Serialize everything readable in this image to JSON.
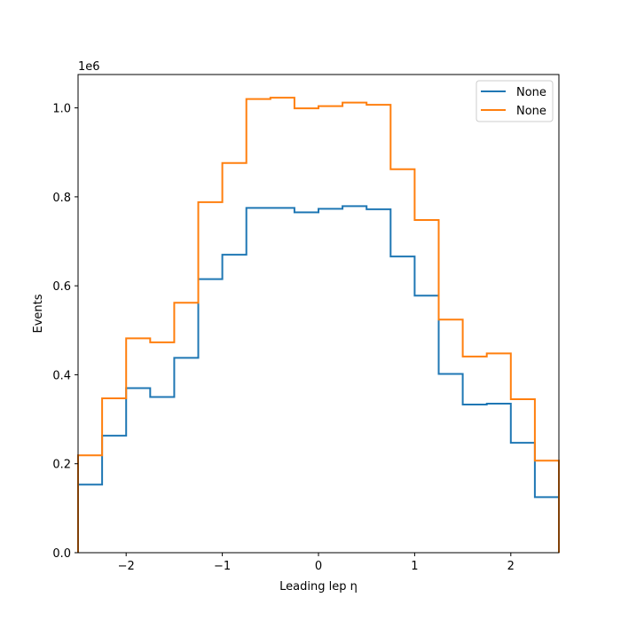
{
  "chart_data": {
    "type": "line",
    "subtype": "step-histogram",
    "title": "",
    "xlabel": "Leading lep η",
    "ylabel": "Events",
    "y_offset_text": "1e6",
    "xlim": [
      -2.5,
      2.5
    ],
    "ylim": [
      0,
      1075000
    ],
    "xticks": [
      -2,
      -1,
      0,
      1,
      2
    ],
    "xtick_labels": [
      "−2",
      "−1",
      "0",
      "1",
      "2"
    ],
    "yticks": [
      0,
      200000,
      400000,
      600000,
      800000,
      1000000
    ],
    "ytick_labels": [
      "0.0",
      "0.2",
      "0.4",
      "0.6",
      "0.8",
      "1.0"
    ],
    "bin_edges": [
      -2.5,
      -2.25,
      -2.0,
      -1.75,
      -1.5,
      -1.25,
      -1.0,
      -0.75,
      -0.5,
      -0.25,
      0.0,
      0.25,
      0.5,
      0.75,
      1.0,
      1.25,
      1.5,
      1.75,
      2.0,
      2.25,
      2.5
    ],
    "grid": false,
    "legend_position": "top-right",
    "series": [
      {
        "name": "None",
        "color": "#1f77b4",
        "values": [
          153000,
          263000,
          370000,
          350000,
          438000,
          615000,
          670000,
          775000,
          775000,
          765000,
          773000,
          779000,
          772000,
          666000,
          578000,
          402000,
          333000,
          335000,
          247000,
          125000
        ]
      },
      {
        "name": "None",
        "color": "#ff7f0e",
        "values": [
          219000,
          347000,
          482000,
          473000,
          562000,
          788000,
          876000,
          1020000,
          1023000,
          999000,
          1004000,
          1012000,
          1007000,
          862000,
          748000,
          524000,
          441000,
          448000,
          345000,
          207000
        ]
      }
    ]
  }
}
